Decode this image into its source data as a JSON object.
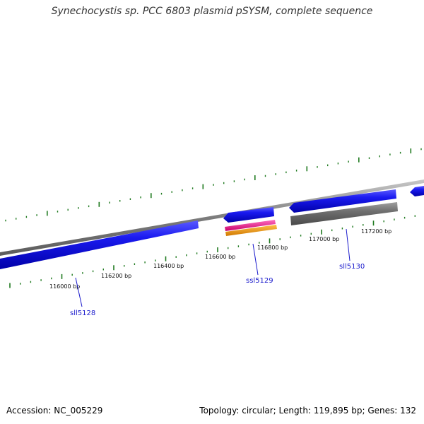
{
  "title": "Synechocystis sp. PCC 6803 plasmid pSYSM, complete sequence",
  "footer": {
    "accession": "Accession: NC_005229",
    "summary": "Topology: circular; Length: 119,895 bp; Genes: 132"
  },
  "colors": {
    "backbone": "#8a8a8a",
    "tick": "#1f7a1f",
    "gene_forward": "#1010e0",
    "gene_reverse": "#1010e0",
    "gene_grey": "#707070",
    "magenta": "#e8198c",
    "orange": "#f29a0c",
    "label": "#1a1acc"
  },
  "ruler_labels": [
    {
      "text": "116000 bp"
    },
    {
      "text": "116200 bp"
    },
    {
      "text": "116400 bp"
    },
    {
      "text": "116600 bp"
    },
    {
      "text": "116800 bp"
    },
    {
      "text": "117000 bp"
    },
    {
      "text": "117200 bp"
    }
  ],
  "gene_labels": [
    {
      "text": "sll5128"
    },
    {
      "text": "ssl5129"
    },
    {
      "text": "sll5130"
    }
  ]
}
